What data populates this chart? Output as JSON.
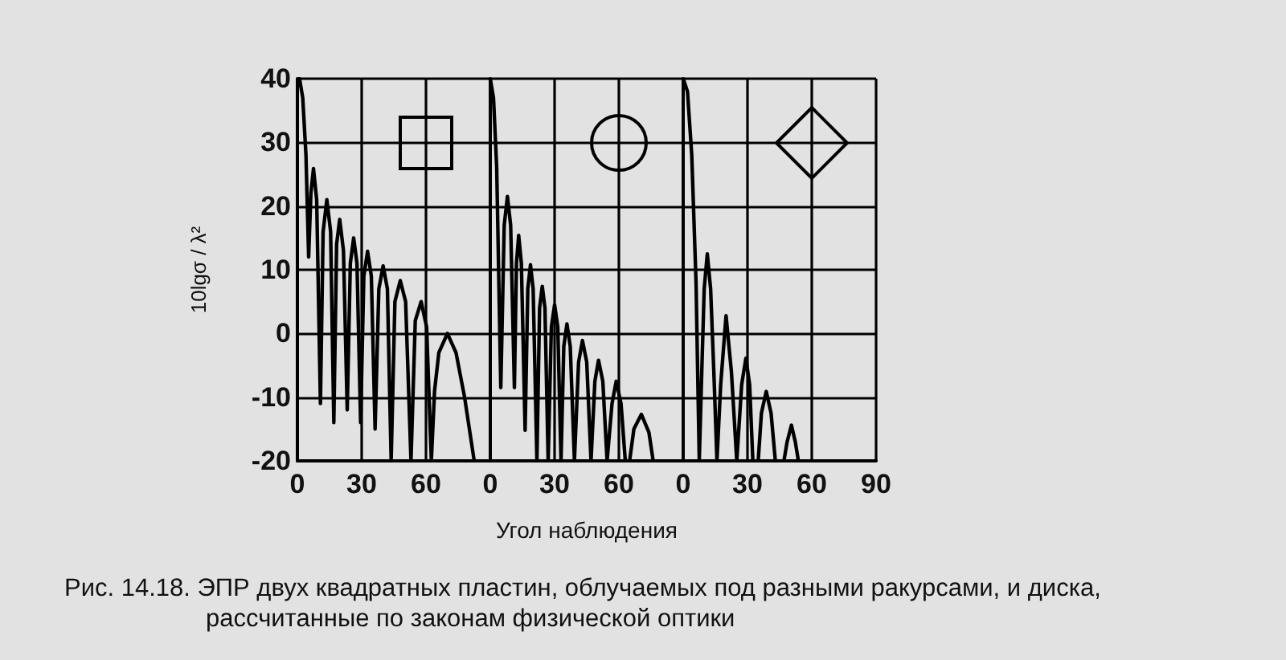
{
  "chart_data": [
    {
      "type": "line",
      "ylabel": "10lgσ / λ²",
      "xlim": [
        0,
        90
      ],
      "xticks": [
        0,
        30,
        60
      ],
      "ylim": [
        -20,
        40
      ],
      "yticks": [
        -20,
        -10,
        0,
        10,
        20,
        30,
        40
      ],
      "grid": true,
      "annotations": [
        "Рис. 14.18. ЭПР двух квадратных пластин, облучаемых под разными ракурсами, и диска, рассчитанные по законам физической оптики"
      ],
      "series": [
        {
          "color": "#000000",
          "x": [
            0,
            1,
            2.5,
            4,
            5.25,
            6.3,
            7.5,
            9,
            10.75,
            12,
            13.75,
            15.5,
            17,
            18.3,
            19.75,
            21.5,
            23.25,
            24.7,
            26.25,
            27.8,
            29.5,
            31,
            32.75,
            34.5,
            36.25,
            38,
            40,
            42,
            43.75,
            45.5,
            48,
            50.5,
            53,
            55,
            57.75,
            60.3,
            62.5,
            64,
            66,
            70,
            74,
            78,
            82.5
          ],
          "values": [
            39,
            40,
            37,
            28,
            12,
            22,
            25.9,
            21,
            -11,
            16,
            21,
            16,
            -14,
            14,
            17.9,
            13,
            -12,
            11,
            15,
            11,
            -14,
            9,
            12.9,
            9,
            -15,
            7,
            10.6,
            7,
            -20,
            5,
            8.3,
            5,
            -20,
            2,
            5,
            1,
            -20,
            -9,
            -3,
            0,
            -3,
            -10,
            -20
          ]
        }
      ]
    },
    {
      "type": "line",
      "xlabel": "Угол наблюдения",
      "xlim": [
        0,
        90
      ],
      "xticks": [
        0,
        30,
        60
      ],
      "ylim": [
        -20,
        40
      ],
      "yticks": [
        -20,
        -10,
        0,
        10,
        20,
        30,
        40
      ],
      "grid": true,
      "tick_labels": "x",
      "series": [
        {
          "color": "#000000",
          "x": [
            0,
            1.5,
            3,
            4.9,
            6.5,
            8,
            9.5,
            11.25,
            12.2,
            13.25,
            14.5,
            16.25,
            17.5,
            18.75,
            20,
            21.75,
            23,
            24.25,
            25.5,
            27,
            28.5,
            30,
            31.5,
            33,
            34.3,
            35.75,
            37.3,
            39.25,
            41.2,
            43,
            45,
            47,
            48.8,
            50.5,
            52.5,
            54.5,
            56.8,
            58.75,
            61,
            63,
            64,
            65,
            67,
            70.5,
            74,
            76
          ],
          "values": [
            40,
            37,
            26,
            -8.5,
            17,
            21.5,
            17,
            -8.5,
            11,
            15.4,
            11,
            -15.2,
            7,
            10.8,
            7,
            -20,
            4,
            7.4,
            4,
            -20,
            1,
            4.5,
            1,
            -20,
            -2,
            1.5,
            -2,
            -20,
            -4.5,
            -1.1,
            -4.5,
            -20,
            -7.5,
            -4.2,
            -7.5,
            -20,
            -11,
            -7.5,
            -11,
            -20,
            null,
            -20,
            -15,
            -12.7,
            -15.5,
            -20
          ]
        }
      ]
    },
    {
      "type": "line",
      "xlim": [
        0,
        90
      ],
      "xticks": [
        0,
        30,
        60,
        90
      ],
      "ylim": [
        -20,
        40
      ],
      "yticks": [
        -20,
        -10,
        0,
        10,
        20,
        30,
        40
      ],
      "grid": true,
      "tick_labels": "x",
      "series": [
        {
          "color": "#000000",
          "x": [
            0,
            2,
            4,
            6,
            7.5,
            8.5,
            9.8,
            11.25,
            12.8,
            14.3,
            15.75,
            17.5,
            20,
            22.5,
            25,
            27.3,
            29.25,
            31,
            32.5,
            34,
            35,
            36.5,
            38.75,
            41,
            43,
            45,
            47,
            48.5,
            50.5,
            52.3,
            53.75
          ],
          "values": [
            40,
            38,
            28,
            8,
            -20,
            -8,
            7,
            12.5,
            7,
            -6,
            -20,
            -8,
            2.8,
            -6,
            -20,
            -8,
            -3.9,
            -8,
            -20,
            null,
            -20,
            -12.5,
            -9.1,
            -12.5,
            -20,
            null,
            -20,
            -17,
            -14.4,
            -17,
            -20
          ]
        }
      ]
    }
  ]
}
